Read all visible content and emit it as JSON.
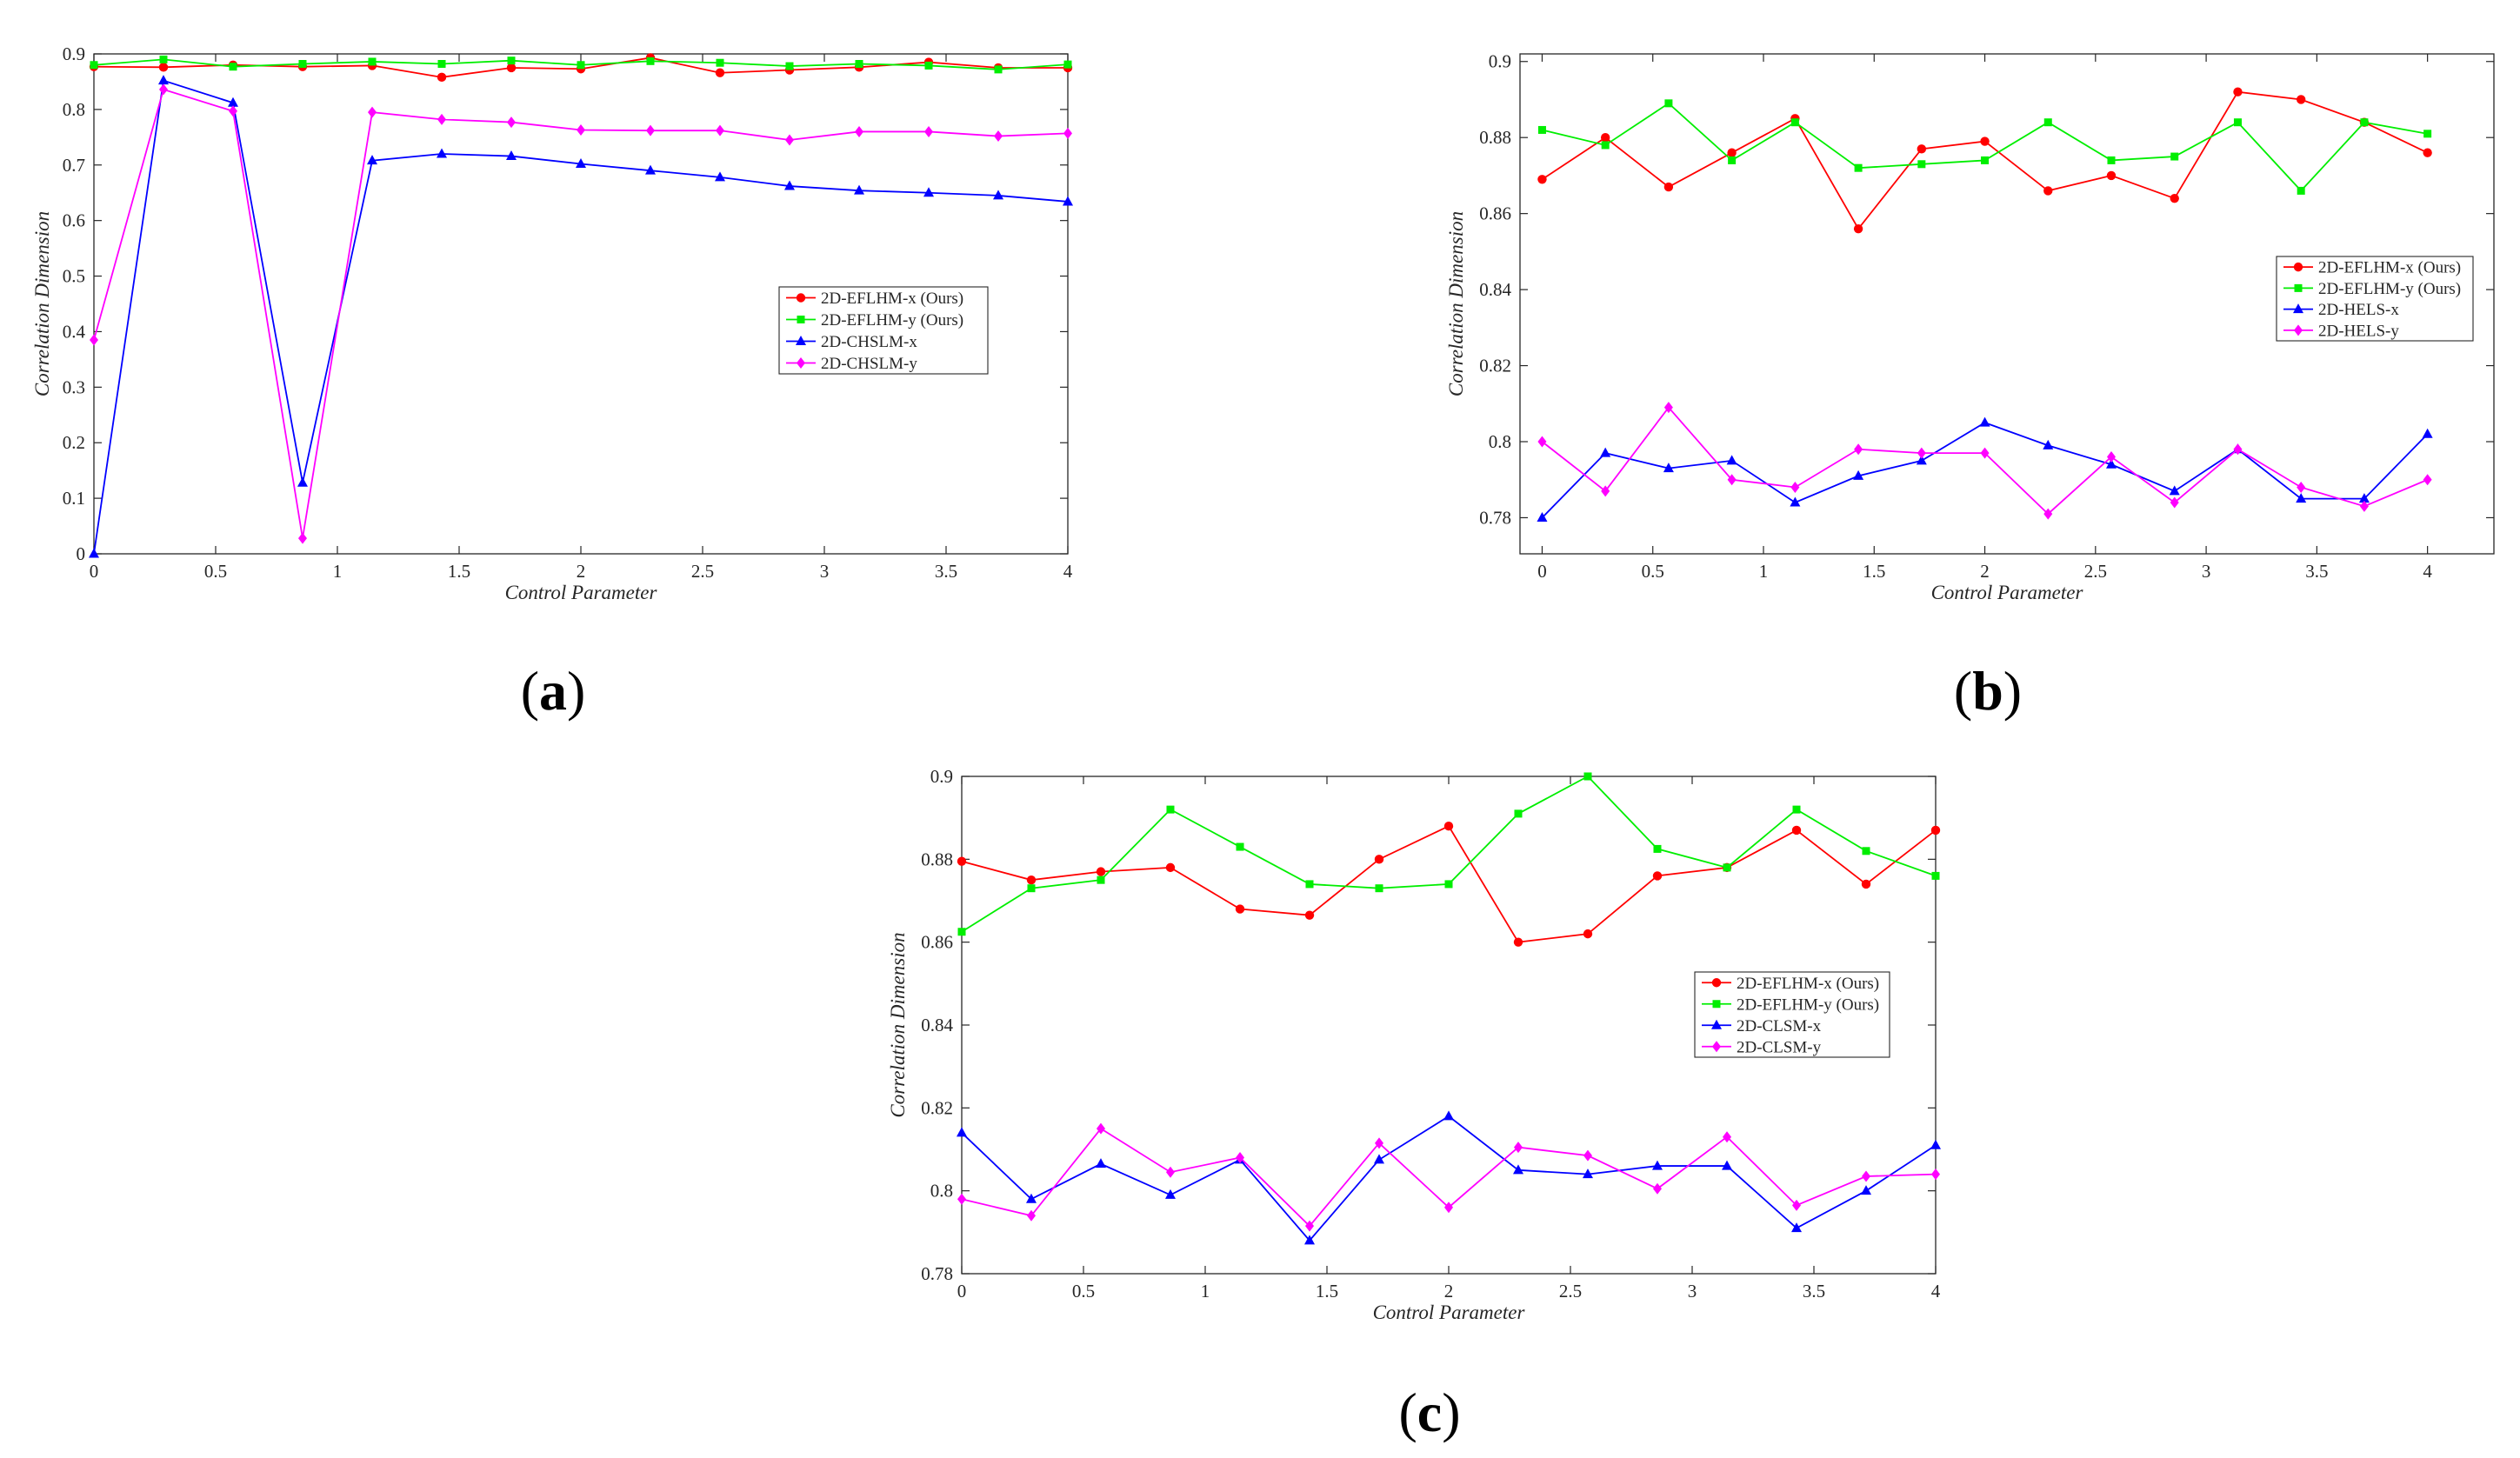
{
  "chart_data": [
    {
      "type": "line",
      "caption": "(a)",
      "xlabel": "Control Parameter",
      "ylabel": "Correlation Dimension",
      "xlim": [
        0,
        4
      ],
      "ylim": [
        0,
        0.9
      ],
      "xticks": [
        0,
        0.5,
        1,
        1.5,
        2,
        2.5,
        3,
        3.5,
        4
      ],
      "xtick_labels": [
        "0",
        "0.5",
        "1",
        "1.5",
        "2",
        "2.5",
        "3",
        "3.5",
        "4"
      ],
      "yticks": [
        0,
        0.1,
        0.2,
        0.3,
        0.4,
        0.5,
        0.6,
        0.7,
        0.8,
        0.9
      ],
      "ytick_labels": [
        "0",
        "0.1",
        "0.2",
        "0.3",
        "0.4",
        "0.5",
        "0.6",
        "0.7",
        "0.8",
        "0.9"
      ],
      "legend_position": "center-right",
      "x": [
        0,
        0.2857,
        0.5714,
        0.8571,
        1.1429,
        1.4286,
        1.7143,
        2.0,
        2.2857,
        2.5714,
        2.8571,
        3.1429,
        3.4286,
        3.7143,
        4.0
      ],
      "series": [
        {
          "name": "2D-EFLHM-x (Ours)",
          "color": "#ff0000",
          "marker": "circle",
          "values": [
            0.877,
            0.876,
            0.88,
            0.877,
            0.879,
            0.858,
            0.875,
            0.873,
            0.893,
            0.866,
            0.871,
            0.876,
            0.885,
            0.875,
            0.875
          ]
        },
        {
          "name": "2D-EFLHM-y (Ours)",
          "color": "#00ee00",
          "marker": "square",
          "values": [
            0.88,
            0.89,
            0.877,
            0.882,
            0.886,
            0.882,
            0.888,
            0.88,
            0.887,
            0.884,
            0.878,
            0.882,
            0.879,
            0.872,
            0.881
          ]
        },
        {
          "name": "2D-CHSLM-x",
          "color": "#0000ff",
          "marker": "triangle",
          "values": [
            0.0,
            0.852,
            0.812,
            0.128,
            0.708,
            0.72,
            0.716,
            0.702,
            0.69,
            0.678,
            0.662,
            0.654,
            0.65,
            0.645,
            0.634
          ]
        },
        {
          "name": "2D-CHSLM-y",
          "color": "#ff00ff",
          "marker": "diamond",
          "values": [
            0.385,
            0.836,
            0.797,
            0.028,
            0.795,
            0.782,
            0.777,
            0.763,
            0.762,
            0.762,
            0.745,
            0.76,
            0.76,
            0.752,
            0.757
          ]
        }
      ]
    },
    {
      "type": "line",
      "caption": "(b)",
      "xlabel": "Control Parameter",
      "ylabel": "Correlation Dimension",
      "xlim": [
        -0.1,
        4.3
      ],
      "ylim": [
        0.7705,
        0.902
      ],
      "xticks": [
        0,
        0.5,
        1,
        1.5,
        2,
        2.5,
        3,
        3.5,
        4
      ],
      "xtick_labels": [
        "0",
        "0.5",
        "1",
        "1.5",
        "2",
        "2.5",
        "3",
        "3.5",
        "4"
      ],
      "yticks": [
        0.78,
        0.8,
        0.82,
        0.84,
        0.86,
        0.88,
        0.9
      ],
      "ytick_labels": [
        "0.78",
        "0.8",
        "0.82",
        "0.84",
        "0.86",
        "0.88",
        "0.9"
      ],
      "legend_position": "center-right",
      "x": [
        0,
        0.2857,
        0.5714,
        0.8571,
        1.1429,
        1.4286,
        1.7143,
        2.0,
        2.2857,
        2.5714,
        2.8571,
        3.1429,
        3.4286,
        3.7143,
        4.0
      ],
      "series": [
        {
          "name": "2D-EFLHM-x (Ours)",
          "color": "#ff0000",
          "marker": "circle",
          "values": [
            0.869,
            0.88,
            0.867,
            0.876,
            0.885,
            0.856,
            0.877,
            0.879,
            0.866,
            0.87,
            0.864,
            0.892,
            0.89,
            0.884,
            0.876
          ]
        },
        {
          "name": "2D-EFLHM-y (Ours)",
          "color": "#00ee00",
          "marker": "square",
          "values": [
            0.882,
            0.878,
            0.889,
            0.874,
            0.884,
            0.872,
            0.873,
            0.874,
            0.884,
            0.874,
            0.875,
            0.884,
            0.866,
            0.884,
            0.881
          ]
        },
        {
          "name": "2D-HELS-x",
          "color": "#0000ff",
          "marker": "triangle",
          "values": [
            0.78,
            0.797,
            0.793,
            0.795,
            0.784,
            0.791,
            0.795,
            0.805,
            0.799,
            0.794,
            0.787,
            0.798,
            0.785,
            0.785,
            0.802
          ]
        },
        {
          "name": "2D-HELS-y",
          "color": "#ff00ff",
          "marker": "diamond",
          "values": [
            0.8,
            0.787,
            0.809,
            0.79,
            0.788,
            0.798,
            0.797,
            0.797,
            0.781,
            0.796,
            0.784,
            0.798,
            0.788,
            0.783,
            0.79
          ]
        }
      ]
    },
    {
      "type": "line",
      "caption": "(c)",
      "xlabel": "Control Parameter",
      "ylabel": "Correlation Dimension",
      "xlim": [
        0,
        4
      ],
      "ylim": [
        0.78,
        0.9
      ],
      "xticks": [
        0,
        0.5,
        1,
        1.5,
        2,
        2.5,
        3,
        3.5,
        4
      ],
      "xtick_labels": [
        "0",
        "0.5",
        "1",
        "1.5",
        "2",
        "2.5",
        "3",
        "3.5",
        "4"
      ],
      "yticks": [
        0.78,
        0.8,
        0.82,
        0.84,
        0.86,
        0.88,
        0.9
      ],
      "ytick_labels": [
        "0.78",
        "0.8",
        "0.82",
        "0.84",
        "0.86",
        "0.88",
        "0.9"
      ],
      "legend_position": "center-right",
      "x": [
        0,
        0.2857,
        0.5714,
        0.8571,
        1.1429,
        1.4286,
        1.7143,
        2.0,
        2.2857,
        2.5714,
        2.8571,
        3.1429,
        3.4286,
        3.7143,
        4.0
      ],
      "series": [
        {
          "name": "2D-EFLHM-x (Ours)",
          "color": "#ff0000",
          "marker": "circle",
          "values": [
            0.8795,
            0.875,
            0.877,
            0.878,
            0.868,
            0.8665,
            0.88,
            0.888,
            0.86,
            0.862,
            0.876,
            0.878,
            0.887,
            0.874,
            0.887
          ]
        },
        {
          "name": "2D-EFLHM-y (Ours)",
          "color": "#00ee00",
          "marker": "square",
          "values": [
            0.8625,
            0.873,
            0.875,
            0.892,
            0.883,
            0.874,
            0.873,
            0.874,
            0.891,
            0.9,
            0.8825,
            0.878,
            0.892,
            0.882,
            0.876
          ]
        },
        {
          "name": "2D-CLSM-x",
          "color": "#0000ff",
          "marker": "triangle",
          "values": [
            0.814,
            0.798,
            0.8065,
            0.799,
            0.8075,
            0.788,
            0.8075,
            0.818,
            0.805,
            0.804,
            0.806,
            0.806,
            0.791,
            0.8,
            0.811
          ]
        },
        {
          "name": "2D-CLSM-y",
          "color": "#ff00ff",
          "marker": "diamond",
          "values": [
            0.798,
            0.794,
            0.815,
            0.8045,
            0.808,
            0.7915,
            0.8115,
            0.796,
            0.8105,
            0.8085,
            0.8005,
            0.813,
            0.7965,
            0.8035,
            0.804
          ]
        }
      ]
    }
  ]
}
